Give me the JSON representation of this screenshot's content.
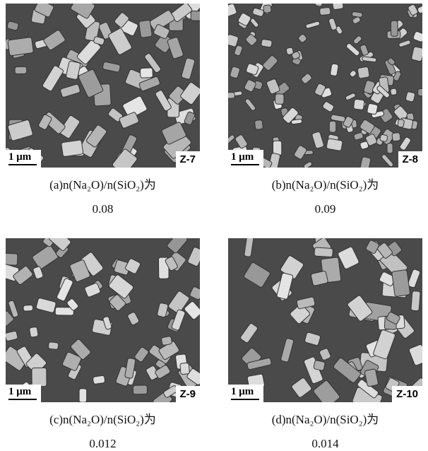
{
  "figure": {
    "panels": [
      {
        "scale_bar": "1 μm",
        "sample": "Z-7",
        "caption": [
          "(a)n(Na₂O)/n(SiO₂)为",
          "0.08"
        ]
      },
      {
        "scale_bar": "1 μm",
        "sample": "Z-8",
        "caption": [
          "(b)n(Na₂O)/n(SiO₂)为",
          "0.09"
        ]
      },
      {
        "scale_bar": "1 μm",
        "sample": "Z-9",
        "caption": [
          "(c)n(Na₂O)/n(SiO₂)为",
          "0.012"
        ]
      },
      {
        "scale_bar": "1 μm",
        "sample": "Z-10",
        "caption": [
          "(d)n(Na₂O)/n(SiO₂)为",
          "0.014"
        ]
      }
    ]
  }
}
